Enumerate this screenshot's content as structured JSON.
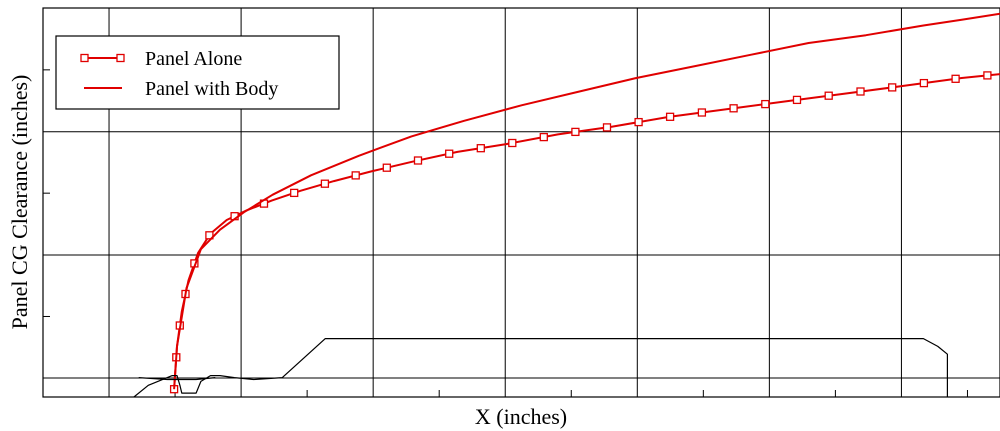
{
  "chart_data": {
    "type": "line",
    "title": "",
    "xlabel": "X (inches)",
    "ylabel": "Panel CG Clearance (inches)",
    "xlim": [
      0,
      100
    ],
    "ylim": [
      0,
      100
    ],
    "grid": true,
    "legend_position": "top-left",
    "series": [
      {
        "name": "Panel Alone",
        "color": "#e00000",
        "marker": "square",
        "x": [
          13.7,
          14.0,
          14.5,
          15.2,
          16.2,
          17.5,
          19.2,
          21.3,
          23.9,
          26.9,
          30.4,
          34.3,
          38.6,
          43.3,
          48.4,
          53.8,
          59.5,
          65.4,
          71.5,
          77.6,
          83.8,
          90.0,
          96.0,
          100.0
        ],
        "y": [
          2.0,
          13.0,
          22.0,
          30.0,
          37.0,
          42.0,
          45.5,
          48.0,
          50.5,
          53.0,
          55.5,
          58.0,
          60.5,
          63.0,
          65.0,
          67.5,
          69.5,
          72.0,
          74.0,
          76.0,
          78.0,
          80.0,
          82.0,
          83.0
        ]
      },
      {
        "name": "Panel with Body",
        "color": "#e00000",
        "marker": "none",
        "x": [
          13.7,
          14.0,
          15.0,
          16.5,
          18.5,
          21.0,
          24.0,
          28.0,
          33.0,
          38.5,
          44.0,
          50.0,
          56.0,
          62.0,
          68.0,
          74.0,
          80.0,
          86.0,
          92.0,
          96.0,
          100.0
        ],
        "y": [
          2.0,
          13.0,
          28.0,
          38.0,
          43.0,
          47.5,
          52.0,
          57.0,
          62.0,
          67.0,
          71.0,
          75.0,
          78.5,
          82.0,
          85.0,
          88.0,
          91.0,
          93.0,
          95.5,
          97.0,
          98.5
        ]
      },
      {
        "name": "",
        "color": "#000000",
        "marker": "none",
        "x": [
          9.5,
          11.0,
          13.5,
          14.0,
          14.3,
          14.5,
          15.0,
          16.0,
          16.5,
          17.5,
          18.5,
          20.0,
          22.0,
          25.0,
          29.5,
          45.0,
          65.0,
          85.0,
          92.0,
          93.5,
          94.5,
          94.5
        ],
        "y": [
          0.0,
          3.0,
          5.5,
          5.5,
          3.0,
          1.0,
          1.0,
          1.0,
          4.0,
          5.5,
          5.5,
          5.0,
          4.5,
          5.0,
          15.0,
          15.0,
          15.0,
          15.0,
          15.0,
          13.0,
          11.0,
          0.0
        ]
      },
      {
        "name": "",
        "color": "#000000",
        "marker": "none",
        "x": [
          10.0,
          13.0,
          16.0,
          18.0
        ],
        "y": [
          5.0,
          4.5,
          4.5,
          5.0
        ]
      }
    ]
  }
}
